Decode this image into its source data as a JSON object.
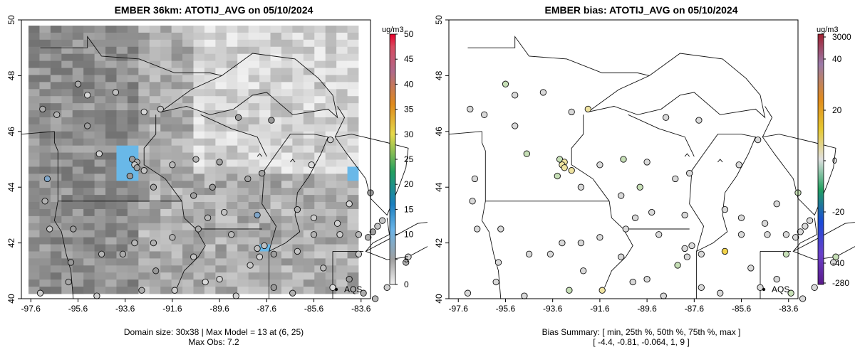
{
  "left_panel": {
    "title": "EMBER 36km: ATOTIJ_AVG on 05/10/2024",
    "x_ticks": [
      "-97.6",
      "-95.6",
      "-93.6",
      "-91.6",
      "-89.6",
      "-87.6",
      "-85.6",
      "-83.6"
    ],
    "y_ticks": [
      "40",
      "42",
      "44",
      "46",
      "48",
      "50"
    ],
    "colorbar_unit": "ug/m3",
    "colorbar_ticks": [
      "0",
      "5",
      "10",
      "15",
      "20",
      "25",
      "30",
      "35",
      "40",
      "45",
      "50"
    ],
    "station_label": "AQS",
    "footer_line1": "Domain size: 30x38 | Max Model = 13 at (6, 25)",
    "footer_line2": "Max Obs: 7.2"
  },
  "right_panel": {
    "title": "EMBER bias: ATOTIJ_AVG on 05/10/2024",
    "x_ticks": [
      "-97.6",
      "-95.6",
      "-93.6",
      "-91.6",
      "-89.6",
      "-87.6",
      "-85.6",
      "-83.6"
    ],
    "y_ticks": [
      "40",
      "42",
      "44",
      "46",
      "48",
      "50"
    ],
    "colorbar_unit": "ug/m3",
    "colorbar_ticks": [
      "3000",
      "40",
      "20",
      "0",
      "-20",
      "-40",
      "-280"
    ],
    "station_label": "AQS",
    "footer_line1": "Bias Summary: [ min, 25th %, 50th %, 75th %, max ]",
    "footer_line2": "[ -4.4,   -0.81,   -0.064,   1,   9 ]"
  },
  "colors": {
    "model_gray_light": "#e6e6e6",
    "model_gray_dark": "#9a9a9a",
    "model_blue": "#5ab4e6",
    "colorbar_top": "#e8002a",
    "bias_neutral": "#dcdcdc",
    "bias_positive": "#f0e68c",
    "bias_negative": "#b8d8a8"
  },
  "chart_data": [
    {
      "type": "heatmap",
      "title": "EMBER 36km: ATOTIJ_AVG on 05/10/2024",
      "xlim": [
        -98.0,
        -83.2
      ],
      "ylim": [
        40.0,
        50.0
      ],
      "colorbar_range": [
        0,
        50
      ],
      "colorbar_unit": "ug/m3",
      "domain_size": "30x38",
      "max_model": 13,
      "max_model_location": [
        6,
        25
      ],
      "max_obs": 7.2,
      "observation_network": "AQS"
    },
    {
      "type": "scatter",
      "title": "EMBER bias: ATOTIJ_AVG on 05/10/2024",
      "xlim": [
        -98.0,
        -83.2
      ],
      "ylim": [
        40.0,
        50.0
      ],
      "colorbar_labels": [
        3000,
        40,
        20,
        0,
        -20,
        -40,
        -280
      ],
      "colorbar_unit": "ug/m3",
      "bias_summary": {
        "min": -4.4,
        "p25": -0.81,
        "p50": -0.064,
        "p75": 1,
        "max": 9
      },
      "observation_network": "AQS"
    }
  ]
}
